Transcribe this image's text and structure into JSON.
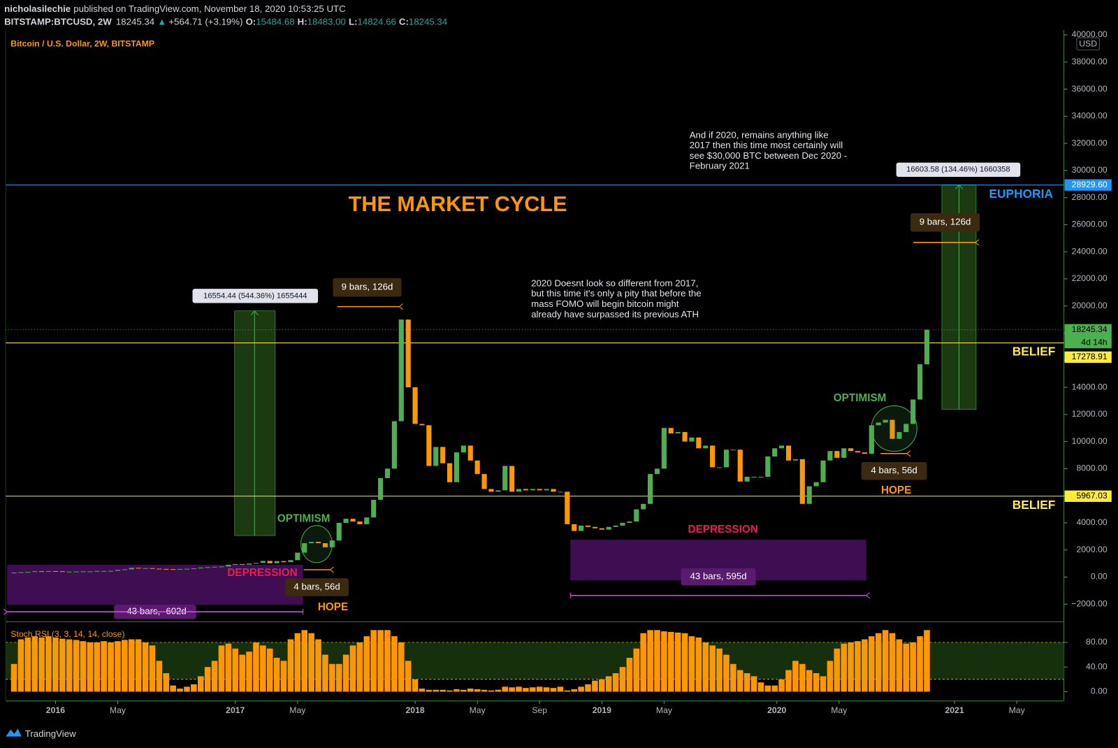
{
  "header": {
    "publisher": "nicholasilechie",
    "published": "published on TradingView.com, November 18, 2020 10:53:25 UTC",
    "symbol": "BITSTAMP:BTCUSD, 2W",
    "last": "18245.34",
    "arrow": "▲",
    "change": "+564.71 (+3.19%)",
    "ohlc": [
      {
        "label": "O:",
        "value": "15484.68"
      },
      {
        "label": "H:",
        "value": "18483.00"
      },
      {
        "label": "L:",
        "value": "14824.66"
      },
      {
        "label": "C:",
        "value": "18245.34"
      }
    ]
  },
  "chart_data": {
    "type": "candlestick",
    "title": "Bitcoin / U.S. Dollar, 2W, BITSTAMP",
    "currency": "USD",
    "color_up": "#4caf50",
    "color_down": "#ff9800",
    "values": [
      330,
      360,
      380,
      430,
      420,
      440,
      430,
      380,
      400,
      410,
      420,
      420,
      450,
      450,
      460,
      530,
      570,
      680,
      650,
      660,
      620,
      600,
      590,
      570,
      600,
      610,
      640,
      700,
      730,
      760,
      780,
      900,
      960,
      920,
      1000,
      1050,
      1190,
      1020,
      1180,
      1100,
      1250,
      1800,
      2500,
      2600,
      2500,
      2200,
      2700,
      4000,
      4300,
      4100,
      3900,
      4400,
      5700,
      7300,
      8000,
      11500,
      19000,
      14000,
      11300,
      11200,
      8200,
      9600,
      8400,
      7000,
      9200,
      9700,
      8600,
      7600,
      6500,
      6300,
      6400,
      8200,
      6300,
      6500,
      6400,
      6500,
      6400,
      6500,
      6300,
      6300,
      3900,
      3400,
      3800,
      3700,
      3600,
      3500,
      3700,
      3800,
      4000,
      4100,
      5000,
      5400,
      7600,
      8000,
      11000,
      10600,
      10700,
      10000,
      10300,
      9500,
      9700,
      8100,
      8100,
      9400,
      9400,
      7050,
      7400,
      7400,
      7400,
      8900,
      9500,
      9700,
      8600,
      8700,
      5400,
      6700,
      7000,
      8600,
      9300,
      8800,
      9500,
      9300,
      9200,
      9100,
      11200,
      11400,
      11600,
      10200,
      10700,
      11300,
      13100,
      15700,
      18245.34
    ],
    "xlim": [
      -1.2,
      151.8
    ],
    "xticks": [
      {
        "value": 6,
        "label": "2016"
      },
      {
        "value": 15,
        "label": "May"
      },
      {
        "value": 32,
        "label": "2017"
      },
      {
        "value": 41,
        "label": "May"
      },
      {
        "value": 58,
        "label": "2018"
      },
      {
        "value": 67,
        "label": "May"
      },
      {
        "value": 76,
        "label": "Sep"
      },
      {
        "value": 85,
        "label": "2019"
      },
      {
        "value": 94,
        "label": "May"
      },
      {
        "value": 110.3,
        "label": "2020"
      },
      {
        "value": 119.3,
        "label": "May"
      },
      {
        "value": 136,
        "label": "2021"
      },
      {
        "value": 145,
        "label": "May"
      }
    ],
    "ylim": [
      -3300,
      40000
    ],
    "yticks": [
      {
        "value": -2000,
        "label": "−2000.00"
      },
      {
        "value": 0,
        "label": "0.00"
      },
      {
        "value": 2000,
        "label": "2000.00"
      },
      {
        "value": 4000,
        "label": "4000.00"
      },
      {
        "value": 6000,
        "label": "6000.00"
      },
      {
        "value": 8000,
        "label": "8000.00"
      },
      {
        "value": 10000,
        "label": "10000.00"
      },
      {
        "value": 12000,
        "label": "12000.00"
      },
      {
        "value": 14000,
        "label": "14000.00"
      },
      {
        "value": 16000,
        "label": "16000.00"
      },
      {
        "value": 18000,
        "label": "18000.00"
      },
      {
        "value": 20000,
        "label": "20000.00"
      },
      {
        "value": 22000,
        "label": "22000.00"
      },
      {
        "value": 24000,
        "label": "24000.00"
      },
      {
        "value": 26000,
        "label": "26000.00"
      },
      {
        "value": 28000,
        "label": "28000.00"
      },
      {
        "value": 30000,
        "label": "30000.00"
      },
      {
        "value": 32000,
        "label": "32000.00"
      },
      {
        "value": 34000,
        "label": "34000.00"
      },
      {
        "value": 36000,
        "label": "36000.00"
      },
      {
        "value": 38000,
        "label": "38000.00"
      },
      {
        "value": 40000,
        "label": "40000.00"
      }
    ],
    "levels": [
      {
        "value": 28929.6,
        "label": "28929.60",
        "color": "#2196f3"
      },
      {
        "value": 17278.91,
        "label": "17278.91",
        "color": "#ffeb3b"
      },
      {
        "value": 5967.03,
        "label": "5967.03",
        "color": "#ffeb3b"
      }
    ],
    "last": {
      "value": 18245.34,
      "label": "18245.34",
      "countdown": "4d 14h",
      "color": "#4caf50"
    },
    "annotations": {
      "cycle_title": "THE MARKET CYCLE",
      "phases": [
        "EUPHORIA",
        "BELIEF",
        "BELIEF",
        "OPTIMISM",
        "OPTIMISM",
        "DEPRESSION",
        "DEPRESSION",
        "HOPE",
        "HOPE"
      ],
      "notes": [
        [
          "And if 2020, remains anything like",
          "2017 then this time most certainly will",
          "see $30,000 BTC between Dec 2020 -",
          "February 2021"
        ],
        [
          "2020 Doesnt look so different from 2017,",
          "but this time it's only a pity that before the",
          "mass FOMO will begin bitcoin might",
          "already have surpassed its previous ATH"
        ]
      ],
      "measures": [
        "16554.44 (544.36%) 1655444",
        "16603.58 (134.46%) 1660358"
      ],
      "ranges": [
        "9 bars, 126d",
        "9 bars, 126d",
        "4 bars, 56d",
        "4 bars, 56d",
        "43 bars, 595d",
        "-43 bars, -602d"
      ]
    },
    "indicator": {
      "type": "bar",
      "title": "Stoch RSI (3, 3, 14, 14, close)",
      "color": "#ff9800",
      "values": [
        45,
        85,
        88,
        90,
        88,
        90,
        88,
        86,
        85,
        84,
        82,
        80,
        80,
        82,
        80,
        82,
        84,
        85,
        85,
        80,
        75,
        50,
        30,
        10,
        5,
        8,
        12,
        25,
        40,
        50,
        75,
        78,
        70,
        60,
        65,
        80,
        75,
        70,
        55,
        50,
        85,
        95,
        100,
        95,
        85,
        60,
        45,
        45,
        60,
        75,
        80,
        90,
        100,
        100,
        100,
        90,
        80,
        50,
        20,
        5,
        3,
        3,
        3,
        2,
        4,
        3,
        5,
        4,
        3,
        2,
        3,
        8,
        7,
        8,
        6,
        7,
        8,
        7,
        6,
        8,
        2,
        4,
        8,
        12,
        18,
        20,
        25,
        30,
        40,
        55,
        70,
        95,
        100,
        100,
        98,
        97,
        96,
        95,
        90,
        88,
        80,
        75,
        70,
        60,
        45,
        35,
        30,
        25,
        15,
        10,
        10,
        20,
        35,
        50,
        45,
        35,
        30,
        25,
        50,
        70,
        78,
        80,
        82,
        85,
        90,
        95,
        100,
        95,
        85,
        78,
        80,
        90,
        100
      ],
      "ylim": [
        -11.6,
        110
      ],
      "yticks": [
        {
          "value": 0,
          "label": "0.00"
        },
        {
          "value": 40,
          "label": "40.00"
        },
        {
          "value": 80,
          "label": "80.00"
        }
      ],
      "bands": [
        20,
        80
      ]
    }
  },
  "footer": {
    "brand": "TradingView"
  }
}
